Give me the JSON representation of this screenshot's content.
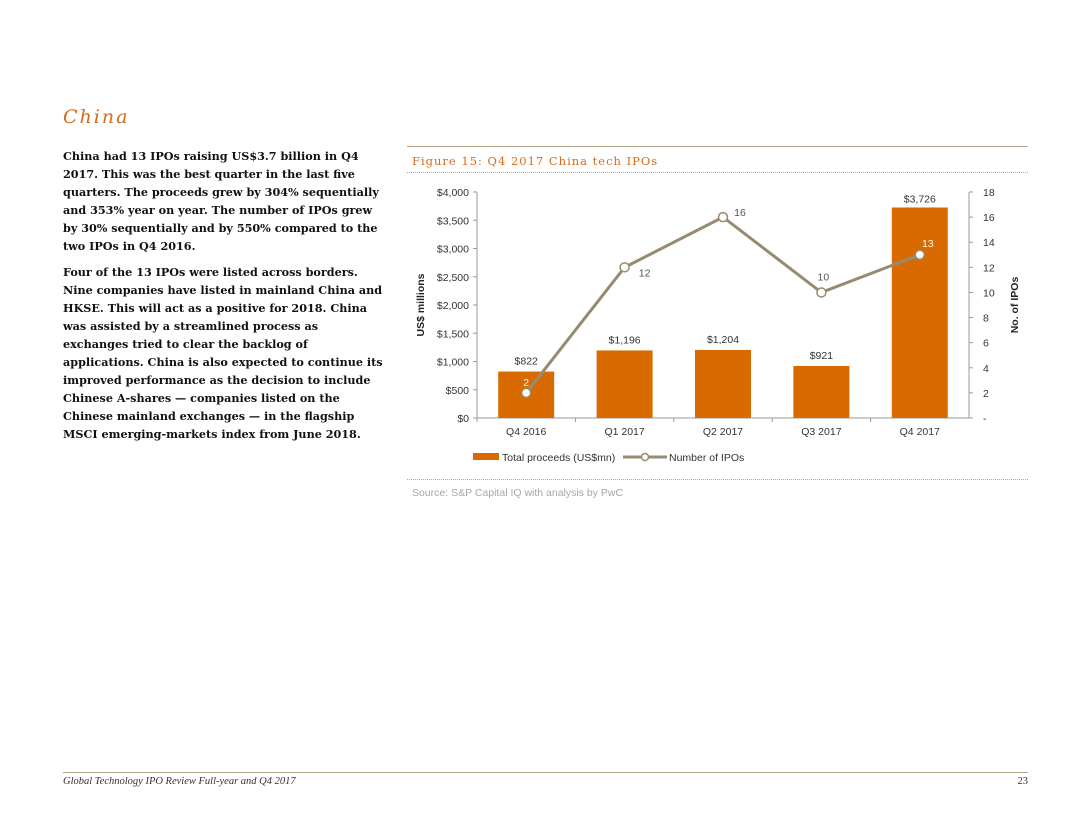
{
  "section": {
    "title": "China"
  },
  "body": {
    "paragraphs": [
      "China had 13 IPOs raising US$3.7 billion in Q4 2017. This was the best quarter in the last five quarters. The proceeds grew by 304% sequentially and 353% year on year. The number of IPOs grew by 30% sequentially and by 550% compared to the two IPOs in Q4 2016.",
      "Four of the 13 IPOs were listed across borders. Nine companies have listed in mainland China and HKSE. This will act as a positive for 2018. China was assisted by a streamlined process as exchanges tried to clear the backlog of applications. China is also expected to continue its improved performance as the decision to include Chinese A-shares — companies listed on the Chinese mainland exchanges — in the flagship MSCI emerging-markets index from June 2018."
    ]
  },
  "figure": {
    "title": "Figure 15: Q4 2017 China tech IPOs",
    "source": "Source: S&P Capital IQ with analysis by PwC"
  },
  "chart_data": {
    "type": "bar+line",
    "title": "Figure 15: Q4 2017 China tech IPOs",
    "categories": [
      "Q4 2016",
      "Q1 2017",
      "Q2 2017",
      "Q3 2017",
      "Q4 2017"
    ],
    "series": [
      {
        "name": "Total proceeds (US$mn)",
        "type": "bar",
        "axis": "left",
        "values": [
          822,
          1196,
          1204,
          921,
          3726
        ],
        "labels": [
          "$822",
          "$1,196",
          "$1,204",
          "$921",
          "$3,726"
        ],
        "color": "#d96a00"
      },
      {
        "name": "Number of IPOs",
        "type": "line",
        "axis": "right",
        "values": [
          2,
          12,
          16,
          10,
          13
        ],
        "labels": [
          "2",
          "12",
          "16",
          "10",
          "13"
        ],
        "color": "#968b70"
      }
    ],
    "ylabel": "US$ millions",
    "y2label": "No. of IPOs",
    "ylim": [
      0,
      4000
    ],
    "y2lim": [
      0,
      18
    ],
    "yticks": [
      "$0",
      "$500",
      "$1,000",
      "$1,500",
      "$2,000",
      "$2,500",
      "$3,000",
      "$3,500",
      "$4,000"
    ],
    "y2ticks": [
      "-",
      "2",
      "4",
      "6",
      "8",
      "10",
      "12",
      "14",
      "16",
      "18"
    ],
    "legend": "bottom",
    "grid": false
  },
  "footer": {
    "left": "Global Technology IPO Review Full-year and Q4 2017",
    "page": "23"
  }
}
